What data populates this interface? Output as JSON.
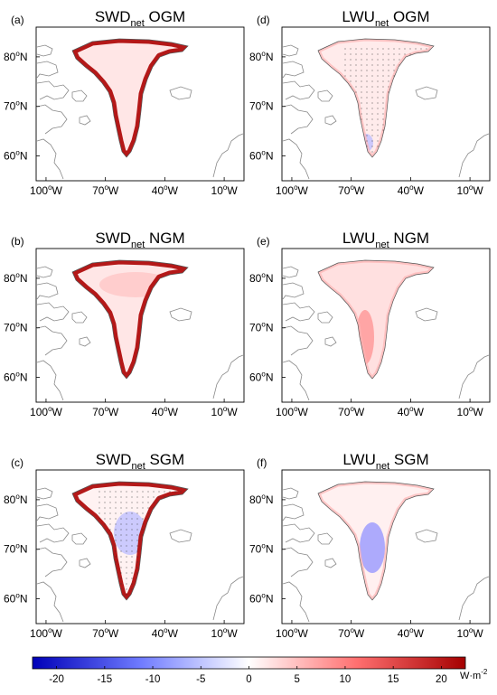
{
  "panels": [
    {
      "id": "a",
      "label": "(a)",
      "var": "SWD",
      "sub": "net",
      "region": "OGM"
    },
    {
      "id": "d",
      "label": "(d)",
      "var": "LWU",
      "sub": "net",
      "region": "OGM"
    },
    {
      "id": "b",
      "label": "(b)",
      "var": "SWD",
      "sub": "net",
      "region": "NGM"
    },
    {
      "id": "e",
      "label": "(e)",
      "var": "LWU",
      "sub": "net",
      "region": "NGM"
    },
    {
      "id": "c",
      "label": "(c)",
      "var": "SWD",
      "sub": "net",
      "region": "SGM"
    },
    {
      "id": "f",
      "label": "(f)",
      "var": "LWU",
      "sub": "net",
      "region": "SGM"
    }
  ],
  "axes": {
    "y_ticks": [
      {
        "value": 80,
        "text": "80"
      },
      {
        "value": 70,
        "text": "70"
      },
      {
        "value": 60,
        "text": "60"
      }
    ],
    "x_ticks": [
      {
        "value": -100,
        "text": "100"
      },
      {
        "value": -70,
        "text": "70"
      },
      {
        "value": -40,
        "text": "40"
      },
      {
        "value": -10,
        "text": "10"
      }
    ],
    "degree_mark": "o",
    "lat_suffix": "N",
    "lon_suffix": "W"
  },
  "colorbar": {
    "ticks": [
      -20,
      -15,
      -10,
      -5,
      0,
      5,
      10,
      15,
      20
    ],
    "tick_labels": [
      "-20",
      "-15",
      "-10",
      "-5",
      "0",
      "5",
      "10",
      "15",
      "20"
    ],
    "range": [
      -22.5,
      22.5
    ],
    "colors": [
      "#0000b8",
      "#ffffff",
      "#a50000"
    ],
    "unit_base": "W·m",
    "unit_exp": "-2"
  },
  "colors": {
    "coast": "#8a8a8a",
    "frame": "#000000"
  }
}
